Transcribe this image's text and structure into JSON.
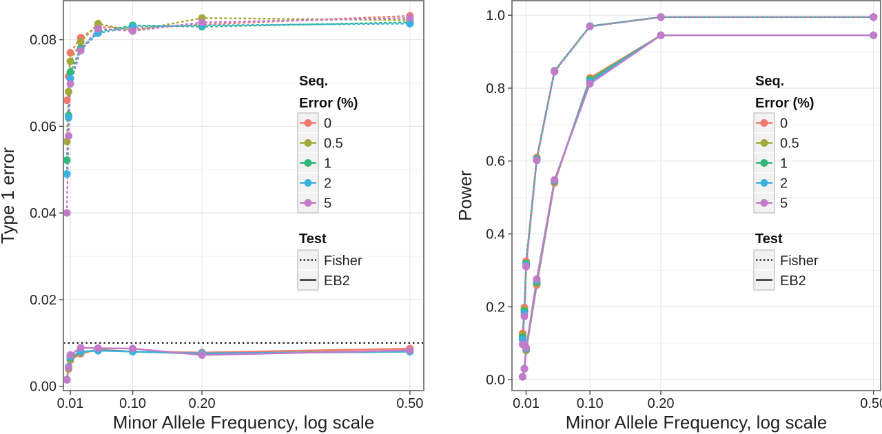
{
  "figure": {
    "xlabel": "Minor Allele Frequency, log scale",
    "legend": {
      "seq_title": "Seq.\nError (%)",
      "test_title": "Test",
      "fisher_label": "Fisher",
      "eb2_label": "EB2"
    }
  },
  "colors": {
    "0": "#ef7b6c",
    "0.5": "#a3a83a",
    "1": "#2fb87a",
    "2": "#3ab1e0",
    "5": "#c27bc8"
  },
  "chart_data": [
    {
      "type": "line",
      "title": "",
      "xlabel": "Minor Allele Frequency, log scale",
      "ylabel": "Type 1 error",
      "x": [
        0.005,
        0.0075,
        0.01,
        0.025,
        0.05,
        0.1,
        0.2,
        0.5
      ],
      "xticks": [
        0.01,
        0.1,
        0.2,
        0.5
      ],
      "xtick_labels": [
        "0.01",
        "0.10",
        "0.20",
        "0.50"
      ],
      "xlim": [
        0,
        0.52
      ],
      "ylim": [
        -0.001,
        0.089
      ],
      "yticks": [
        0,
        0.02,
        0.04,
        0.06,
        0.08
      ],
      "ytick_labels": [
        "0.00",
        "0.02",
        "0.04",
        "0.06",
        "0.08"
      ],
      "reference_line": 0.01,
      "legend_position": "right",
      "grid": true,
      "series": [
        {
          "name": "0",
          "test": "Fisher",
          "values": [
            0.066,
            0.0715,
            0.077,
            0.0805,
            0.083,
            0.0825,
            0.0835,
            0.0855
          ]
        },
        {
          "name": "0.5",
          "test": "Fisher",
          "values": [
            0.0565,
            0.068,
            0.075,
            0.0795,
            0.0837,
            0.082,
            0.085,
            0.0845
          ]
        },
        {
          "name": "1",
          "test": "Fisher",
          "values": [
            0.0522,
            0.0625,
            0.0725,
            0.078,
            0.0818,
            0.0833,
            0.083,
            0.084
          ]
        },
        {
          "name": "2",
          "test": "Fisher",
          "values": [
            0.049,
            0.062,
            0.071,
            0.0776,
            0.0815,
            0.083,
            0.0833,
            0.0837
          ]
        },
        {
          "name": "5",
          "test": "Fisher",
          "values": [
            0.04,
            0.0578,
            0.0698,
            0.0775,
            0.0825,
            0.082,
            0.084,
            0.085
          ]
        },
        {
          "name": "0",
          "test": "EB2",
          "values": [
            0.0015,
            0.0042,
            0.006,
            0.0075,
            0.0085,
            0.008,
            0.0078,
            0.0087
          ]
        },
        {
          "name": "0.5",
          "test": "EB2",
          "values": [
            0.0015,
            0.004,
            0.0063,
            0.0078,
            0.0083,
            0.008,
            0.0075,
            0.0082
          ]
        },
        {
          "name": "1",
          "test": "EB2",
          "values": [
            0.0015,
            0.0044,
            0.0066,
            0.0079,
            0.0083,
            0.008,
            0.0075,
            0.008
          ]
        },
        {
          "name": "2",
          "test": "EB2",
          "values": [
            0.0015,
            0.0045,
            0.0068,
            0.008,
            0.0082,
            0.008,
            0.0076,
            0.008
          ]
        },
        {
          "name": "5",
          "test": "EB2",
          "values": [
            0.0015,
            0.0043,
            0.0072,
            0.0089,
            0.0088,
            0.0087,
            0.0072,
            0.0083
          ]
        }
      ]
    },
    {
      "type": "line",
      "title": "",
      "xlabel": "Minor Allele Frequency, log scale",
      "ylabel": "Power",
      "x": [
        0.005,
        0.0075,
        0.01,
        0.025,
        0.05,
        0.1,
        0.2,
        0.5
      ],
      "xticks": [
        0.01,
        0.1,
        0.2,
        0.5
      ],
      "xtick_labels": [
        "0.01",
        "0.10",
        "0.20",
        "0.50"
      ],
      "xlim": [
        -0.01,
        0.51
      ],
      "ylim": [
        -0.03,
        1.04
      ],
      "yticks": [
        0,
        0.2,
        0.4,
        0.6,
        0.8,
        1.0
      ],
      "ytick_labels": [
        "0.0",
        "0.2",
        "0.4",
        "0.6",
        "0.8",
        "1.0"
      ],
      "legend_position": "right",
      "grid": true,
      "series": [
        {
          "name": "0",
          "test": "Fisher",
          "values": [
            0.127,
            0.198,
            0.325,
            0.61,
            0.848,
            0.97,
            0.995,
            0.995
          ]
        },
        {
          "name": "0.5",
          "test": "Fisher",
          "values": [
            0.122,
            0.192,
            0.32,
            0.607,
            0.847,
            0.97,
            0.995,
            0.995
          ]
        },
        {
          "name": "1",
          "test": "Fisher",
          "values": [
            0.116,
            0.188,
            0.318,
            0.606,
            0.847,
            0.97,
            0.995,
            0.995
          ]
        },
        {
          "name": "2",
          "test": "Fisher",
          "values": [
            0.11,
            0.182,
            0.315,
            0.604,
            0.846,
            0.97,
            0.995,
            0.995
          ]
        },
        {
          "name": "5",
          "test": "Fisher",
          "values": [
            0.097,
            0.174,
            0.31,
            0.602,
            0.845,
            0.969,
            0.995,
            0.995
          ]
        },
        {
          "name": "0",
          "test": "EB2",
          "values": [
            0.008,
            0.03,
            0.08,
            0.26,
            0.54,
            0.828,
            0.945,
            0.945
          ]
        },
        {
          "name": "0.5",
          "test": "EB2",
          "values": [
            0.008,
            0.03,
            0.082,
            0.265,
            0.543,
            0.825,
            0.945,
            0.945
          ]
        },
        {
          "name": "1",
          "test": "EB2",
          "values": [
            0.008,
            0.03,
            0.084,
            0.268,
            0.545,
            0.822,
            0.945,
            0.945
          ]
        },
        {
          "name": "2",
          "test": "EB2",
          "values": [
            0.008,
            0.03,
            0.086,
            0.272,
            0.547,
            0.818,
            0.945,
            0.945
          ]
        },
        {
          "name": "5",
          "test": "EB2",
          "values": [
            0.008,
            0.03,
            0.088,
            0.276,
            0.548,
            0.812,
            0.945,
            0.945
          ]
        }
      ]
    }
  ]
}
